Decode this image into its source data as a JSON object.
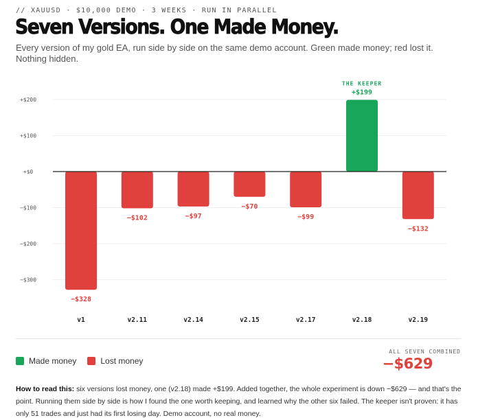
{
  "header": {
    "kicker": "// XAUUSD · $10,000 DEMO · 3 WEEKS · RUN IN PARALLEL",
    "title": "Seven Versions. One Made Money.",
    "subtitle": "Every version of my gold EA, run side by side on the same demo account. Green made money; red lost it. Nothing hidden."
  },
  "chart_data": {
    "type": "bar",
    "categories": [
      "v1",
      "v2.11",
      "v2.14",
      "v2.15",
      "v2.17",
      "v2.18",
      "v2.19"
    ],
    "values": [
      -328,
      -102,
      -97,
      -70,
      -99,
      199,
      -132
    ],
    "value_labels": [
      "−$328",
      "−$102",
      "−$97",
      "−$70",
      "−$99",
      "+$199",
      "−$132"
    ],
    "ylim": [
      -300,
      200
    ],
    "yticks": [
      200,
      100,
      0,
      -100,
      -200,
      -300
    ],
    "ytick_labels": [
      "+$200",
      "+$100",
      "+$0",
      "−$100",
      "−$200",
      "−$300"
    ],
    "grid": true,
    "highlight_index": 5,
    "highlight_caption": "THE KEEPER",
    "colors": {
      "positive": "#17a659",
      "negative": "#e0413d"
    }
  },
  "legend": {
    "made": {
      "label": "Made money",
      "color": "#17a659"
    },
    "lost": {
      "label": "Lost money",
      "color": "#e0413d"
    }
  },
  "summary": {
    "label": "ALL SEVEN COMBINED",
    "value": "−$629"
  },
  "note": {
    "lead": "How to read this:",
    "body": " six versions lost money, one (v2.18) made +$199. Added together, the whole experiment is down −$629 — and that's the point. Running them side by side is how I found the one worth keeping, and learned why the other six failed. The keeper isn't proven: it has only 51 trades and just had its first losing day. Demo account, no real money."
  }
}
